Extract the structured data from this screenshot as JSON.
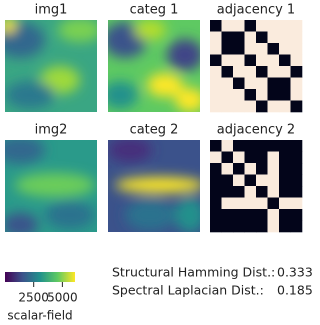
{
  "panels": [
    {
      "title": "img1"
    },
    {
      "title": "categ 1"
    },
    {
      "title": "img2"
    },
    {
      "title": "categ 2"
    }
  ],
  "adjacency": [
    {
      "title": "adjacency 1",
      "matrix": [
        [
          0,
          1,
          1,
          0,
          1,
          1,
          1,
          1
        ],
        [
          1,
          0,
          0,
          1,
          0,
          1,
          1,
          1
        ],
        [
          1,
          0,
          0,
          1,
          1,
          0,
          1,
          1
        ],
        [
          0,
          1,
          1,
          0,
          1,
          1,
          0,
          1
        ],
        [
          1,
          0,
          1,
          1,
          0,
          1,
          1,
          0
        ],
        [
          1,
          1,
          0,
          1,
          1,
          0,
          0,
          1
        ],
        [
          1,
          1,
          1,
          0,
          1,
          0,
          0,
          1
        ],
        [
          1,
          1,
          1,
          1,
          0,
          1,
          1,
          0
        ]
      ]
    },
    {
      "title": "adjacency 2",
      "matrix": [
        [
          0,
          1,
          0,
          0,
          0,
          0,
          0,
          0
        ],
        [
          1,
          0,
          1,
          0,
          0,
          1,
          0,
          0
        ],
        [
          0,
          1,
          0,
          1,
          0,
          1,
          0,
          0
        ],
        [
          0,
          0,
          1,
          0,
          1,
          1,
          0,
          0
        ],
        [
          0,
          0,
          0,
          1,
          0,
          1,
          0,
          0
        ],
        [
          0,
          1,
          1,
          1,
          1,
          0,
          1,
          1
        ],
        [
          0,
          0,
          0,
          0,
          0,
          1,
          0,
          0
        ],
        [
          0,
          0,
          0,
          0,
          0,
          1,
          0,
          0
        ]
      ]
    }
  ],
  "colorbar": {
    "label": "scalar-field",
    "range": [
      0,
      6100
    ],
    "ticks": [
      2500,
      5000
    ]
  },
  "metrics": [
    {
      "label": "Structural Hamming Dist.:",
      "value": 0.333
    },
    {
      "label": "Spectral Laplacian Dist.:",
      "value": 0.185
    }
  ]
}
